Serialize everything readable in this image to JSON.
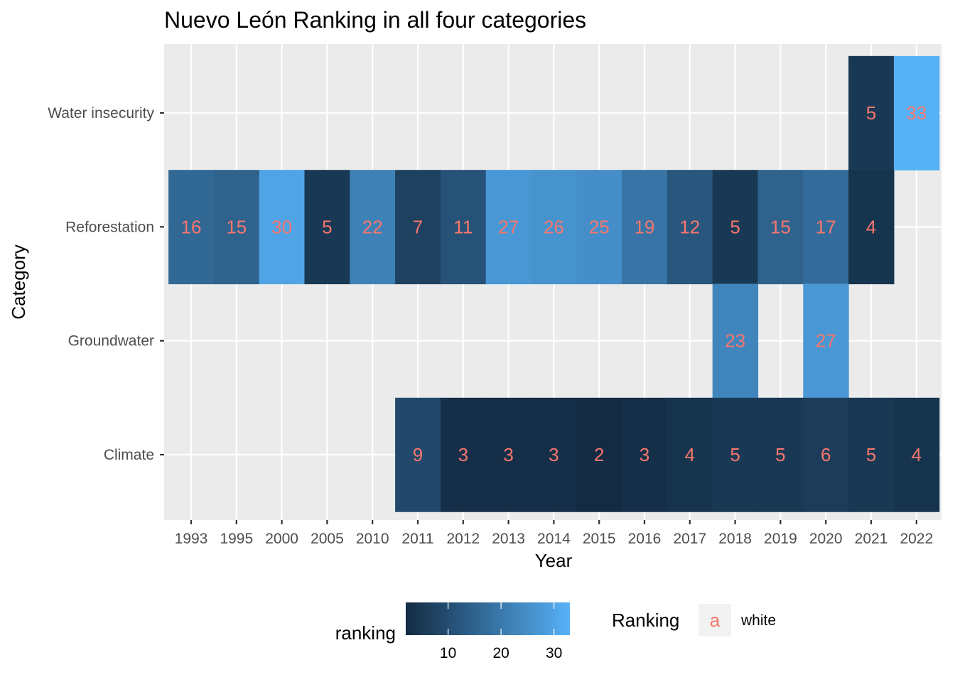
{
  "chart_data": {
    "type": "heatmap",
    "title": "Nuevo León Ranking in all four categories",
    "xlabel": "Year",
    "ylabel": "Category",
    "x": [
      "1993",
      "1995",
      "2000",
      "2005",
      "2010",
      "2011",
      "2012",
      "2013",
      "2014",
      "2015",
      "2016",
      "2017",
      "2018",
      "2019",
      "2020",
      "2021",
      "2022"
    ],
    "y": [
      "Climate",
      "Groundwater",
      "Reforestation",
      "Water insecurity"
    ],
    "cells": [
      {
        "x": "2021",
        "y": "Water insecurity",
        "value": 5
      },
      {
        "x": "2022",
        "y": "Water insecurity",
        "value": 33
      },
      {
        "x": "1993",
        "y": "Reforestation",
        "value": 16
      },
      {
        "x": "1995",
        "y": "Reforestation",
        "value": 15
      },
      {
        "x": "2000",
        "y": "Reforestation",
        "value": 30
      },
      {
        "x": "2005",
        "y": "Reforestation",
        "value": 5
      },
      {
        "x": "2010",
        "y": "Reforestation",
        "value": 22
      },
      {
        "x": "2011",
        "y": "Reforestation",
        "value": 7
      },
      {
        "x": "2012",
        "y": "Reforestation",
        "value": 11
      },
      {
        "x": "2013",
        "y": "Reforestation",
        "value": 27
      },
      {
        "x": "2014",
        "y": "Reforestation",
        "value": 26
      },
      {
        "x": "2015",
        "y": "Reforestation",
        "value": 25
      },
      {
        "x": "2016",
        "y": "Reforestation",
        "value": 19
      },
      {
        "x": "2017",
        "y": "Reforestation",
        "value": 12
      },
      {
        "x": "2018",
        "y": "Reforestation",
        "value": 5
      },
      {
        "x": "2019",
        "y": "Reforestation",
        "value": 15
      },
      {
        "x": "2020",
        "y": "Reforestation",
        "value": 17
      },
      {
        "x": "2021",
        "y": "Reforestation",
        "value": 4
      },
      {
        "x": "2018",
        "y": "Groundwater",
        "value": 23
      },
      {
        "x": "2020",
        "y": "Groundwater",
        "value": 27
      },
      {
        "x": "2011",
        "y": "Climate",
        "value": 9
      },
      {
        "x": "2012",
        "y": "Climate",
        "value": 3
      },
      {
        "x": "2013",
        "y": "Climate",
        "value": 3
      },
      {
        "x": "2014",
        "y": "Climate",
        "value": 3
      },
      {
        "x": "2015",
        "y": "Climate",
        "value": 2
      },
      {
        "x": "2016",
        "y": "Climate",
        "value": 3
      },
      {
        "x": "2017",
        "y": "Climate",
        "value": 4
      },
      {
        "x": "2018",
        "y": "Climate",
        "value": 5
      },
      {
        "x": "2019",
        "y": "Climate",
        "value": 5
      },
      {
        "x": "2020",
        "y": "Climate",
        "value": 6
      },
      {
        "x": "2021",
        "y": "Climate",
        "value": 5
      },
      {
        "x": "2022",
        "y": "Climate",
        "value": 4
      }
    ],
    "fill_scale": {
      "name": "ranking",
      "low_color": "#132B43",
      "high_color": "#56B1F7",
      "limits": [
        2,
        33
      ],
      "breaks": [
        10,
        20,
        30
      ]
    },
    "label_legend": {
      "title": "Ranking",
      "key_glyph": "a",
      "key_label": "white"
    },
    "label_color": "#F8766D",
    "panel_color": "#EBEBEB",
    "grid_color": "#FFFFFF",
    "legend_position": "bottom",
    "grid": true
  }
}
